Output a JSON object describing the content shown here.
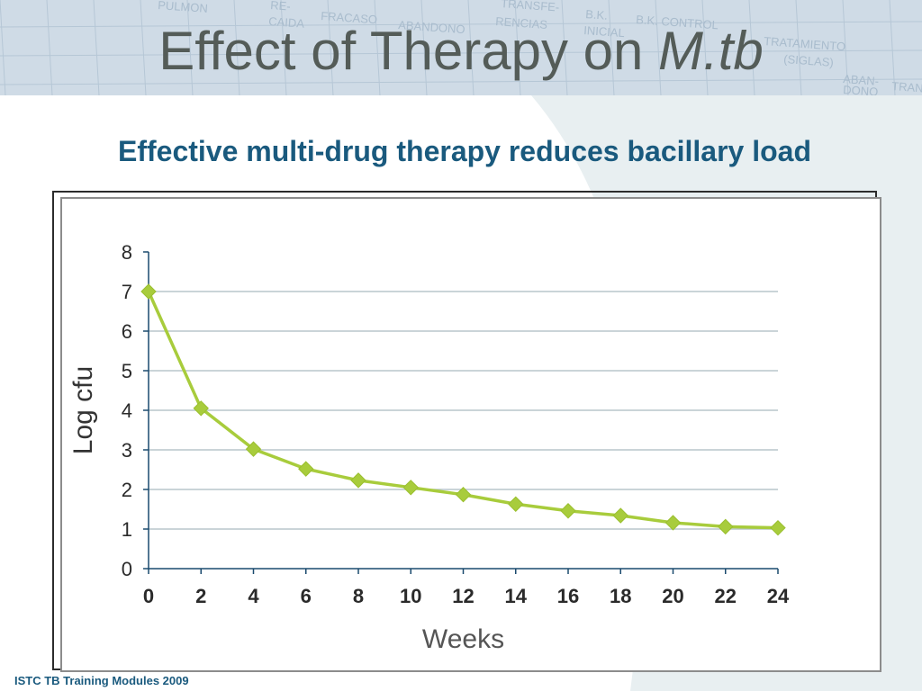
{
  "slide": {
    "title_main": "Effect of Therapy on ",
    "title_italic": "M.tb",
    "subtitle": "Effective multi-drug therapy reduces bacillary load",
    "footer": "ISTC TB Training Modules 2009"
  },
  "background_form_words": [
    "PULMON",
    "RE-",
    "CAIDA",
    "FRACASO",
    "ABANDONO",
    "TRANSFE-",
    "RENCIAS",
    "B.K.",
    "INICIAL",
    "B.K. CONTROL",
    "TRATAMIENTO",
    "(SIGLAS)",
    "ABAN-",
    "DONO",
    "TRAN"
  ],
  "colors": {
    "title": "#545c58",
    "subtitle": "#1a5a7e",
    "series": "#a8cc3c",
    "gridline": "#b8c6cc",
    "axis": "#1a4a6e",
    "header_band": "#cfdbe6",
    "background_curve": "#e8eff1"
  },
  "chart_data": {
    "type": "line",
    "title": "",
    "xlabel": "Weeks",
    "ylabel": "Log cfu",
    "xlim": [
      0,
      24
    ],
    "ylim": [
      0,
      8
    ],
    "xticks": [
      0,
      2,
      4,
      6,
      8,
      10,
      12,
      14,
      16,
      18,
      20,
      22,
      24
    ],
    "yticks": [
      0,
      1,
      2,
      3,
      4,
      5,
      6,
      7,
      8
    ],
    "grid": "horizontal",
    "legend": "none",
    "marker": "diamond",
    "series": [
      {
        "x": [
          0,
          2,
          4,
          6,
          8,
          10,
          12,
          14,
          16,
          18,
          20,
          22,
          24
        ],
        "y": [
          7.0,
          4.05,
          3.02,
          2.52,
          2.23,
          2.05,
          1.87,
          1.63,
          1.46,
          1.34,
          1.16,
          1.06,
          1.03
        ]
      }
    ]
  }
}
